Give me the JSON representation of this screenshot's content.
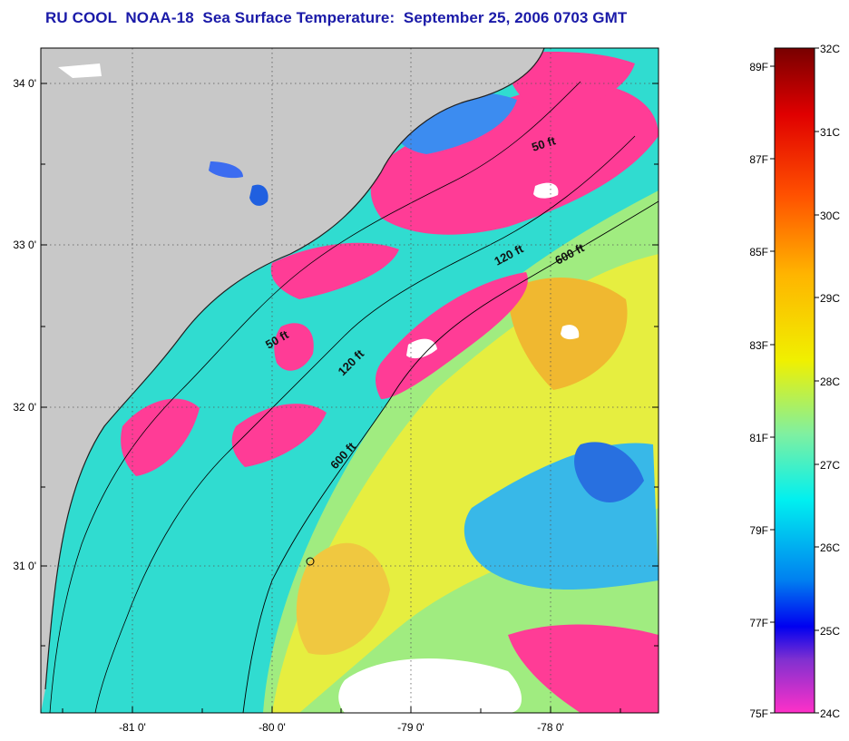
{
  "title": "RU COOL  NOAA-18  Sea Surface Temperature:  September 25, 2006 0703 GMT",
  "map": {
    "lat_ticks": [
      "34 0'",
      "33 0'",
      "32 0'",
      "31 0'"
    ],
    "lon_ticks": [
      "-81 0'",
      "-80 0'",
      "-79 0'",
      "-78 0'"
    ],
    "contour_labels": [
      "50 ft",
      "120 ft",
      "600 ft",
      "50 ft",
      "120 ft",
      "600 ft"
    ],
    "colors": {
      "land": "#c8c8c8",
      "cold_pink": "#ff3c96",
      "cyan": "#28e6dc",
      "green": "#8cf0a0",
      "yellow": "#e6f03c",
      "orange": "#f0b428",
      "blue": "#2878f0",
      "cloud": "#ffffff"
    }
  },
  "colorbar": {
    "celsius_labels": [
      "32C",
      "31C",
      "30C",
      "29C",
      "28C",
      "27C",
      "26C",
      "25C",
      "24C"
    ],
    "fahrenheit_labels": [
      "89F",
      "87F",
      "85F",
      "83F",
      "81F",
      "79F",
      "77F",
      "75F"
    ]
  }
}
